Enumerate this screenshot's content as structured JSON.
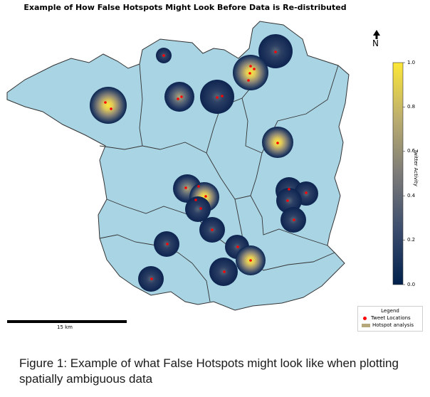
{
  "map_title": "Example of How False Hotspots Might Look Before Data is Re-distributed",
  "north_label": "N",
  "scale_label": "15 km",
  "colorbar": {
    "label": "Twitter Activity",
    "ticks": [
      "1.0",
      "0.8",
      "0.6",
      "0.4",
      "0.2",
      "0.0"
    ],
    "colors": [
      "#00204c",
      "#3c4d6e",
      "#7c7b78",
      "#bcae6f",
      "#fde737"
    ]
  },
  "legend": {
    "title": "Legend",
    "items": [
      {
        "label": "Tweet Locations",
        "color": "#ff0000"
      },
      {
        "label": "Hotspot analysis",
        "color": "#b5a87a"
      }
    ]
  },
  "caption": "Figure 1: Example of what False Hotspots might look like when plotting spatially ambiguous data",
  "map_colors": {
    "land": "#a9d4e4",
    "boundary": "#333333",
    "tweet": "#ff0000"
  }
}
